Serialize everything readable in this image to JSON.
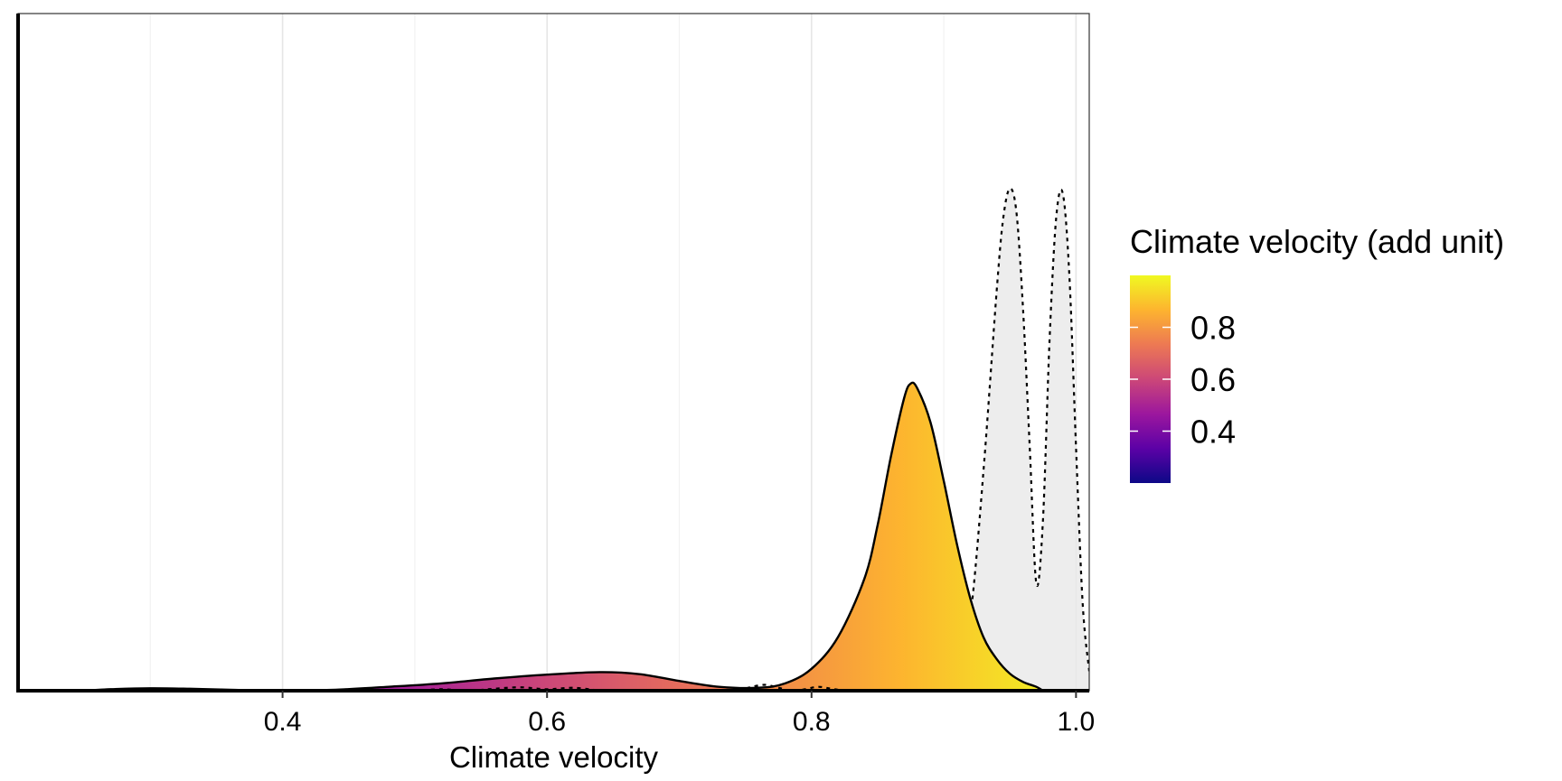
{
  "chart_data": {
    "type": "area",
    "chart_kind": "density plot with gradient fill and dotted comparison densities",
    "xlabel": "Climate velocity",
    "ylabel": "",
    "xlim": [
      0.2,
      1.01
    ],
    "x_ticks": [
      0.4,
      0.6,
      0.8,
      1.0
    ],
    "x_tick_labels": [
      "0.4",
      "0.6",
      "0.8",
      "1.0"
    ],
    "ylim": [
      0,
      1
    ],
    "y_ticks_shown": false,
    "grid": {
      "vertical_major": true,
      "vertical_minor": true,
      "horizontal": false
    },
    "series": [
      {
        "kind": "density-gradient-fill",
        "outline": "solid",
        "x": [
          0.25,
          0.27,
          0.3,
          0.33,
          0.36,
          0.4,
          0.44,
          0.48,
          0.52,
          0.56,
          0.6,
          0.64,
          0.67,
          0.7,
          0.73,
          0.76,
          0.78,
          0.8,
          0.82,
          0.84,
          0.85,
          0.86,
          0.87,
          0.875,
          0.88,
          0.89,
          0.9,
          0.91,
          0.92,
          0.93,
          0.94,
          0.95,
          0.96,
          0.97,
          0.975
        ],
        "y": [
          0.0,
          0.003,
          0.005,
          0.004,
          0.002,
          0.0,
          0.002,
          0.008,
          0.015,
          0.025,
          0.033,
          0.038,
          0.034,
          0.02,
          0.008,
          0.006,
          0.015,
          0.045,
          0.11,
          0.23,
          0.34,
          0.48,
          0.6,
          0.63,
          0.62,
          0.55,
          0.43,
          0.3,
          0.19,
          0.11,
          0.065,
          0.035,
          0.018,
          0.008,
          0.0
        ]
      },
      {
        "kind": "density-dotted",
        "fill": "#e8e8e8",
        "x": [
          0.88,
          0.89,
          0.9,
          0.905,
          0.91,
          0.92,
          0.93,
          0.94,
          0.945,
          0.95,
          0.955,
          0.96,
          0.965,
          0.97,
          0.975,
          0.98,
          0.985,
          0.99,
          0.995,
          1.0,
          1.005,
          1.01
        ],
        "y": [
          0.0,
          0.0,
          0.01,
          0.02,
          0.04,
          0.15,
          0.45,
          0.82,
          0.97,
          1.03,
          0.98,
          0.78,
          0.5,
          0.22,
          0.35,
          0.72,
          0.97,
          1.02,
          0.85,
          0.5,
          0.18,
          0.04
        ]
      },
      {
        "kind": "density-dotted",
        "fill": "#dcc070",
        "x": [
          0.85,
          0.86,
          0.87,
          0.88,
          0.885,
          0.89,
          0.895,
          0.9,
          0.91,
          0.92,
          0.93,
          0.935
        ],
        "y": [
          0.0,
          0.03,
          0.1,
          0.2,
          0.21,
          0.18,
          0.1,
          0.05,
          0.035,
          0.025,
          0.008,
          0.0
        ]
      },
      {
        "kind": "density-dotted-small",
        "x": [
          0.5,
          0.52,
          0.54,
          0.56,
          0.58,
          0.6,
          0.62,
          0.64
        ],
        "y": [
          0.0,
          0.003,
          0.0,
          0.004,
          0.007,
          0.003,
          0.006,
          0.0
        ]
      },
      {
        "kind": "density-dotted-small",
        "x": [
          0.745,
          0.755,
          0.765,
          0.775,
          0.785,
          0.795,
          0.805,
          0.815,
          0.825
        ],
        "y": [
          0.0,
          0.008,
          0.012,
          0.006,
          0.0,
          0.003,
          0.008,
          0.004,
          0.0
        ]
      }
    ],
    "legend": {
      "title": "Climate velocity (add unit)",
      "placement": "right",
      "type": "colorbar",
      "range": [
        0.2,
        1.0
      ],
      "ticks": [
        0.4,
        0.6,
        0.8
      ],
      "tick_labels": [
        "0.4",
        "0.6",
        "0.8"
      ],
      "palette": [
        "#0d0887",
        "#5c01a6",
        "#9c179e",
        "#cc4778",
        "#ed7953",
        "#fdb42f",
        "#f0f921"
      ]
    }
  }
}
